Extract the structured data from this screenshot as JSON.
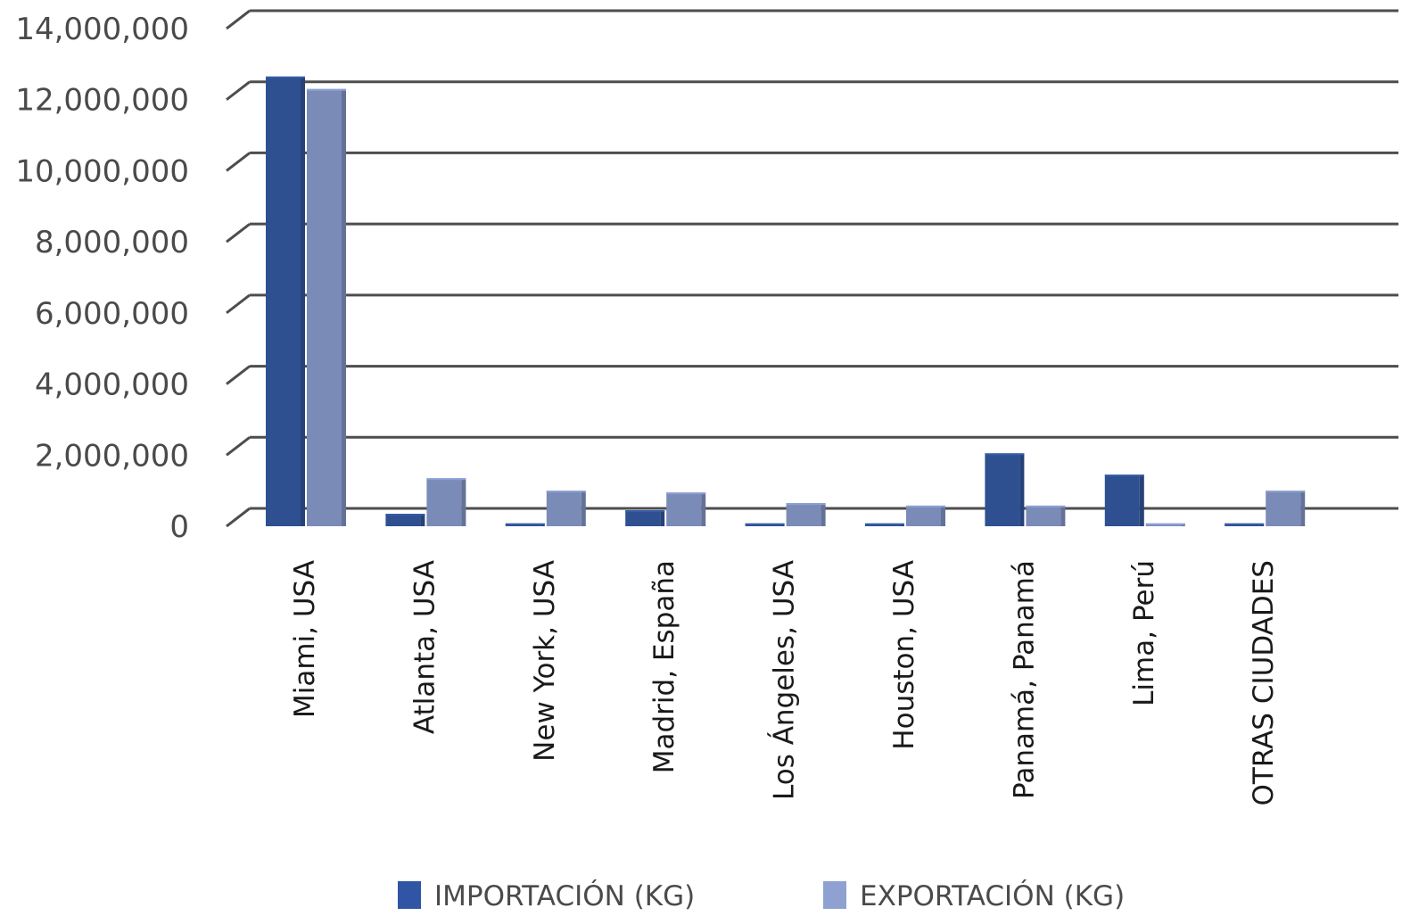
{
  "chart_data": {
    "type": "bar",
    "categories": [
      "Miami, USA",
      "Atlanta, USA",
      "New York, USA",
      "Madrid, España",
      "Los Ángeles, USA",
      "Houston, USA",
      "Panamá, Panamá",
      "Lima, Perú",
      "OTRAS CIUDADES"
    ],
    "series": [
      {
        "name": "IMPORTACIÓN (KG)",
        "color": "#2e5090",
        "values": [
          12650000,
          350000,
          80000,
          450000,
          80000,
          80000,
          2050000,
          1450000,
          80000
        ]
      },
      {
        "name": "EXPORTACIÓN (KG)",
        "color": "#7b8bb8",
        "values": [
          12300000,
          1350000,
          1000000,
          950000,
          650000,
          580000,
          580000,
          80000,
          1000000
        ]
      }
    ],
    "ylim": [
      0,
      14000000
    ],
    "yticks": [
      0,
      2000000,
      4000000,
      6000000,
      8000000,
      10000000,
      12000000,
      14000000
    ],
    "ytick_labels": [
      "0",
      "2,000,000",
      "4,000,000",
      "6,000,000",
      "8,000,000",
      "10,000,000",
      "12,000,000",
      "14,000,000"
    ],
    "grid": true,
    "legend": "bottom",
    "title": "",
    "xlabel": "",
    "ylabel": ""
  }
}
